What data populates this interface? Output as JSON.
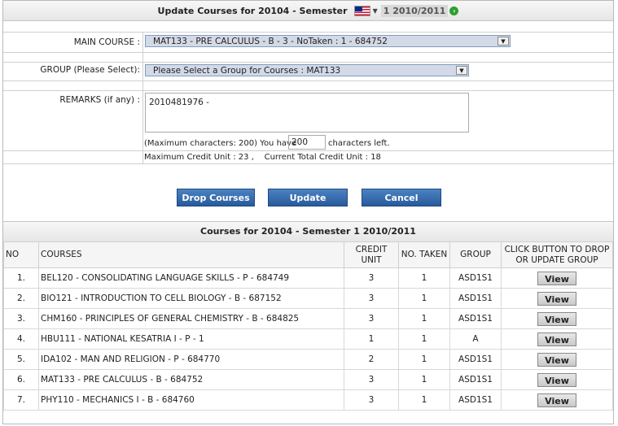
{
  "header": {
    "title": "Update Courses for 20104 - Semester",
    "semester_select": "1 2010/2011",
    "flag_icon": "malaysia-flag-icon"
  },
  "form": {
    "main_course_label": "MAIN COURSE :",
    "main_course_value": "MAT133 - PRE CALCULUS - B - 3 - NoTaken : 1 - 684752",
    "group_label": "GROUP (Please Select):",
    "group_value": "Please Select a Group for Courses : MAT133",
    "remarks_label": "REMARKS (if any) :",
    "remarks_value": "2010481976 -",
    "max_chars_text": "(Maximum characters: 200) You have",
    "chars_left_value": "200",
    "chars_left_suffix": "characters left.",
    "credit_info": "Maximum Credit Unit : 23 ,    Current Total Credit Unit : 18"
  },
  "actions": {
    "drop_label": "Drop Courses",
    "update_label": "Update",
    "cancel_label": "Cancel"
  },
  "courses_table": {
    "title": "Courses for 20104 - Semester 1 2010/2011",
    "headers": [
      "NO",
      "COURSES",
      "CREDIT UNIT",
      "NO. TAKEN",
      "GROUP",
      "CLICK BUTTON TO DROP OR UPDATE GROUP"
    ],
    "view_label": "View",
    "rows": [
      {
        "no": "1.",
        "course": "BEL120 - CONSOLIDATING LANGUAGE SKILLS - P - 684749",
        "credit": "3",
        "taken": "1",
        "group": "ASD1S1"
      },
      {
        "no": "2.",
        "course": "BIO121 - INTRODUCTION TO CELL BIOLOGY - B - 687152",
        "credit": "3",
        "taken": "1",
        "group": "ASD1S1"
      },
      {
        "no": "3.",
        "course": "CHM160 - PRINCIPLES OF GENERAL CHEMISTRY - B - 684825",
        "credit": "3",
        "taken": "1",
        "group": "ASD1S1"
      },
      {
        "no": "4.",
        "course": "HBU111 - NATIONAL KESATRIA I - P - 1",
        "credit": "1",
        "taken": "1",
        "group": "A"
      },
      {
        "no": "5.",
        "course": "IDA102 - MAN AND RELIGION - P - 684770",
        "credit": "2",
        "taken": "1",
        "group": "ASD1S1"
      },
      {
        "no": "6.",
        "course": "MAT133 - PRE CALCULUS - B - 684752",
        "credit": "3",
        "taken": "1",
        "group": "ASD1S1"
      },
      {
        "no": "7.",
        "course": "PHY110 - MECHANICS I - B - 684760",
        "credit": "3",
        "taken": "1",
        "group": "ASD1S1"
      }
    ]
  }
}
